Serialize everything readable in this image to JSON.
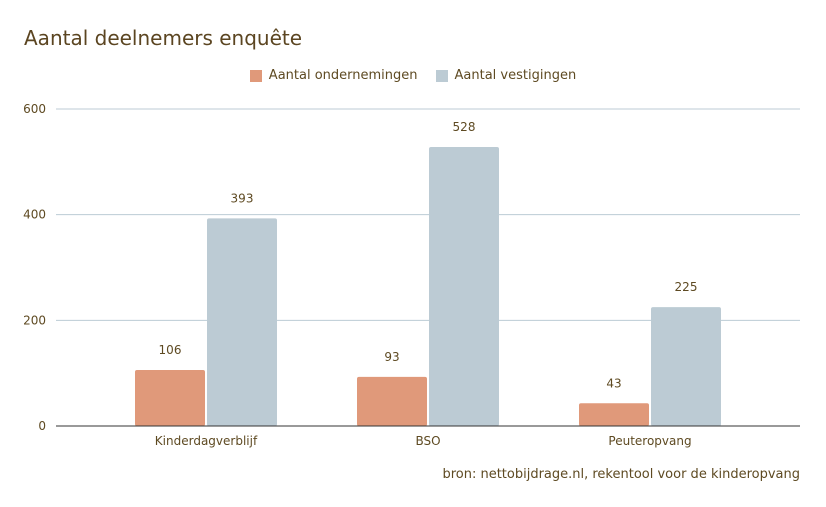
{
  "chart_data": {
    "type": "bar",
    "title": "Aantal deelnemers enquête",
    "categories": [
      "Kinderdagverblijf",
      "BSO",
      "Peuteropvang"
    ],
    "series": [
      {
        "name": "Aantal ondernemingen",
        "values": [
          106,
          93,
          43
        ],
        "color": "#e0997a"
      },
      {
        "name": "Aantal vestigingen",
        "values": [
          393,
          528,
          225
        ],
        "color": "#bccbd4"
      }
    ],
    "ylim": [
      0,
      600
    ],
    "yticks": [
      0,
      200,
      400,
      600
    ],
    "grid": true,
    "legend": "top",
    "data_labels": true,
    "source": "bron: nettobijdrage.nl, rekentool voor de kinderopvang"
  }
}
